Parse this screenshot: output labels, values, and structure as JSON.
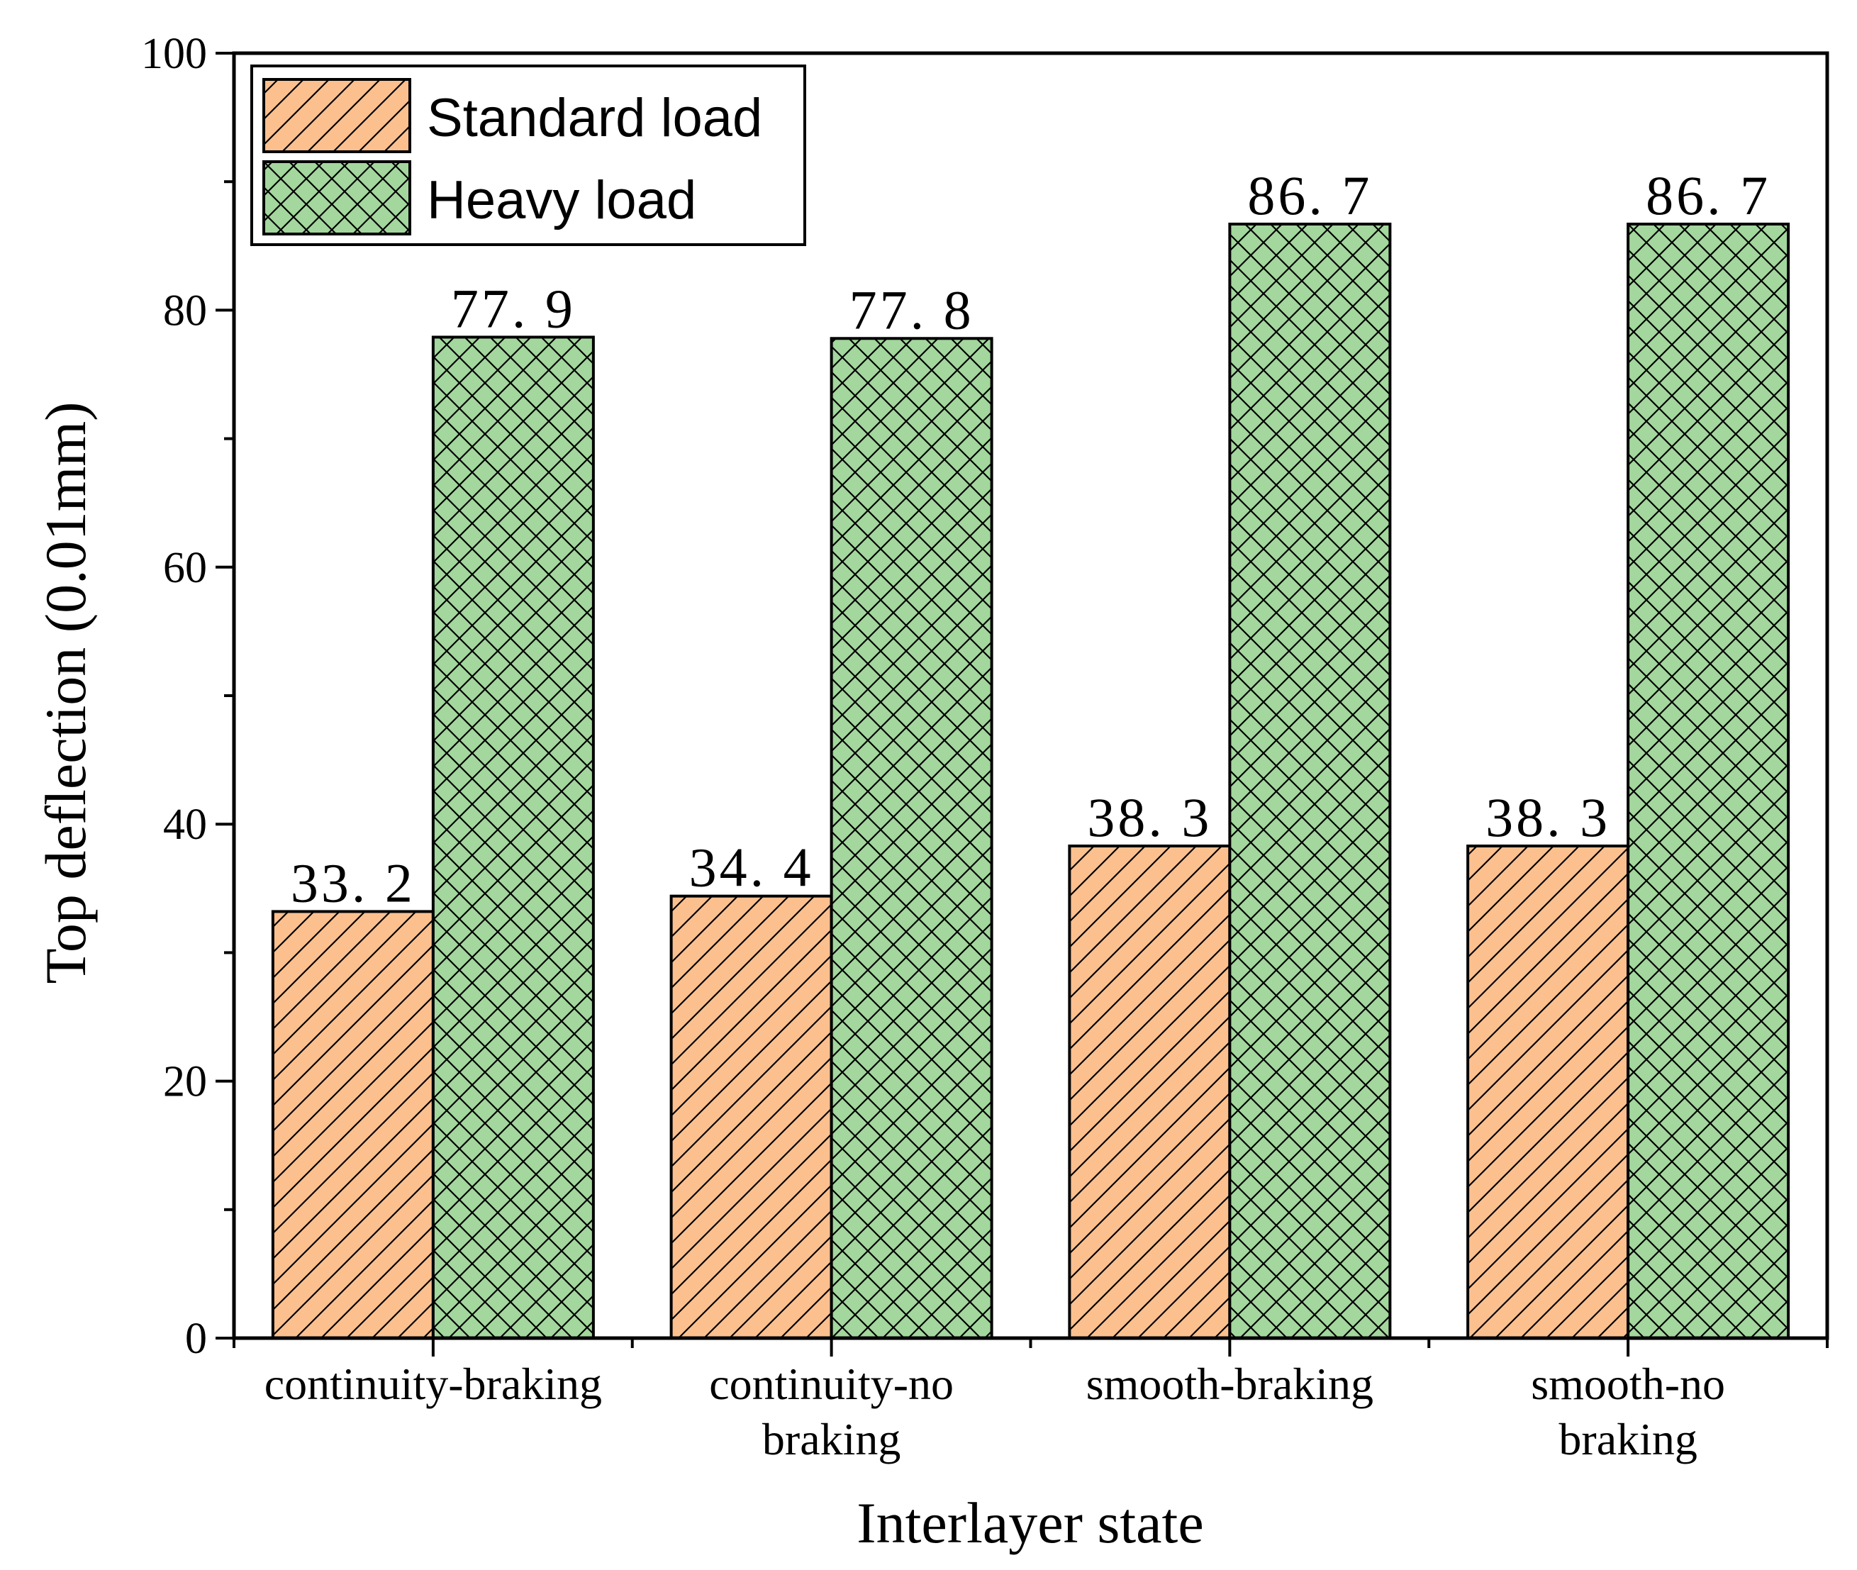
{
  "chart_data": {
    "type": "bar",
    "categories": [
      [
        "continuity-braking"
      ],
      [
        "continuity-no",
        "braking"
      ],
      [
        "smooth-braking"
      ],
      [
        "smooth-no",
        "braking"
      ]
    ],
    "series": [
      {
        "name": "Standard load",
        "values": [
          33.2,
          34.4,
          38.3,
          38.3
        ],
        "labels": [
          "33. 2",
          "34. 4",
          "38. 3",
          "38. 3"
        ],
        "color": "#fcc08f",
        "pattern": "diagonal-hatch"
      },
      {
        "name": "Heavy load",
        "values": [
          77.9,
          77.8,
          86.7,
          86.7
        ],
        "labels": [
          "77. 9",
          "77. 8",
          "86. 7",
          "86. 7"
        ],
        "color": "#a3d79d",
        "pattern": "cross-hatch"
      }
    ],
    "title": "",
    "xlabel": "Interlayer state",
    "ylabel": "Top deflection (0.01mm)",
    "ylim": [
      0,
      100
    ],
    "yticks": [
      0,
      20,
      40,
      60,
      80,
      100
    ],
    "ytick_labels": [
      "0",
      "20",
      "40",
      "60",
      "80",
      "100"
    ],
    "legend_position": "top-left",
    "grid": false
  }
}
